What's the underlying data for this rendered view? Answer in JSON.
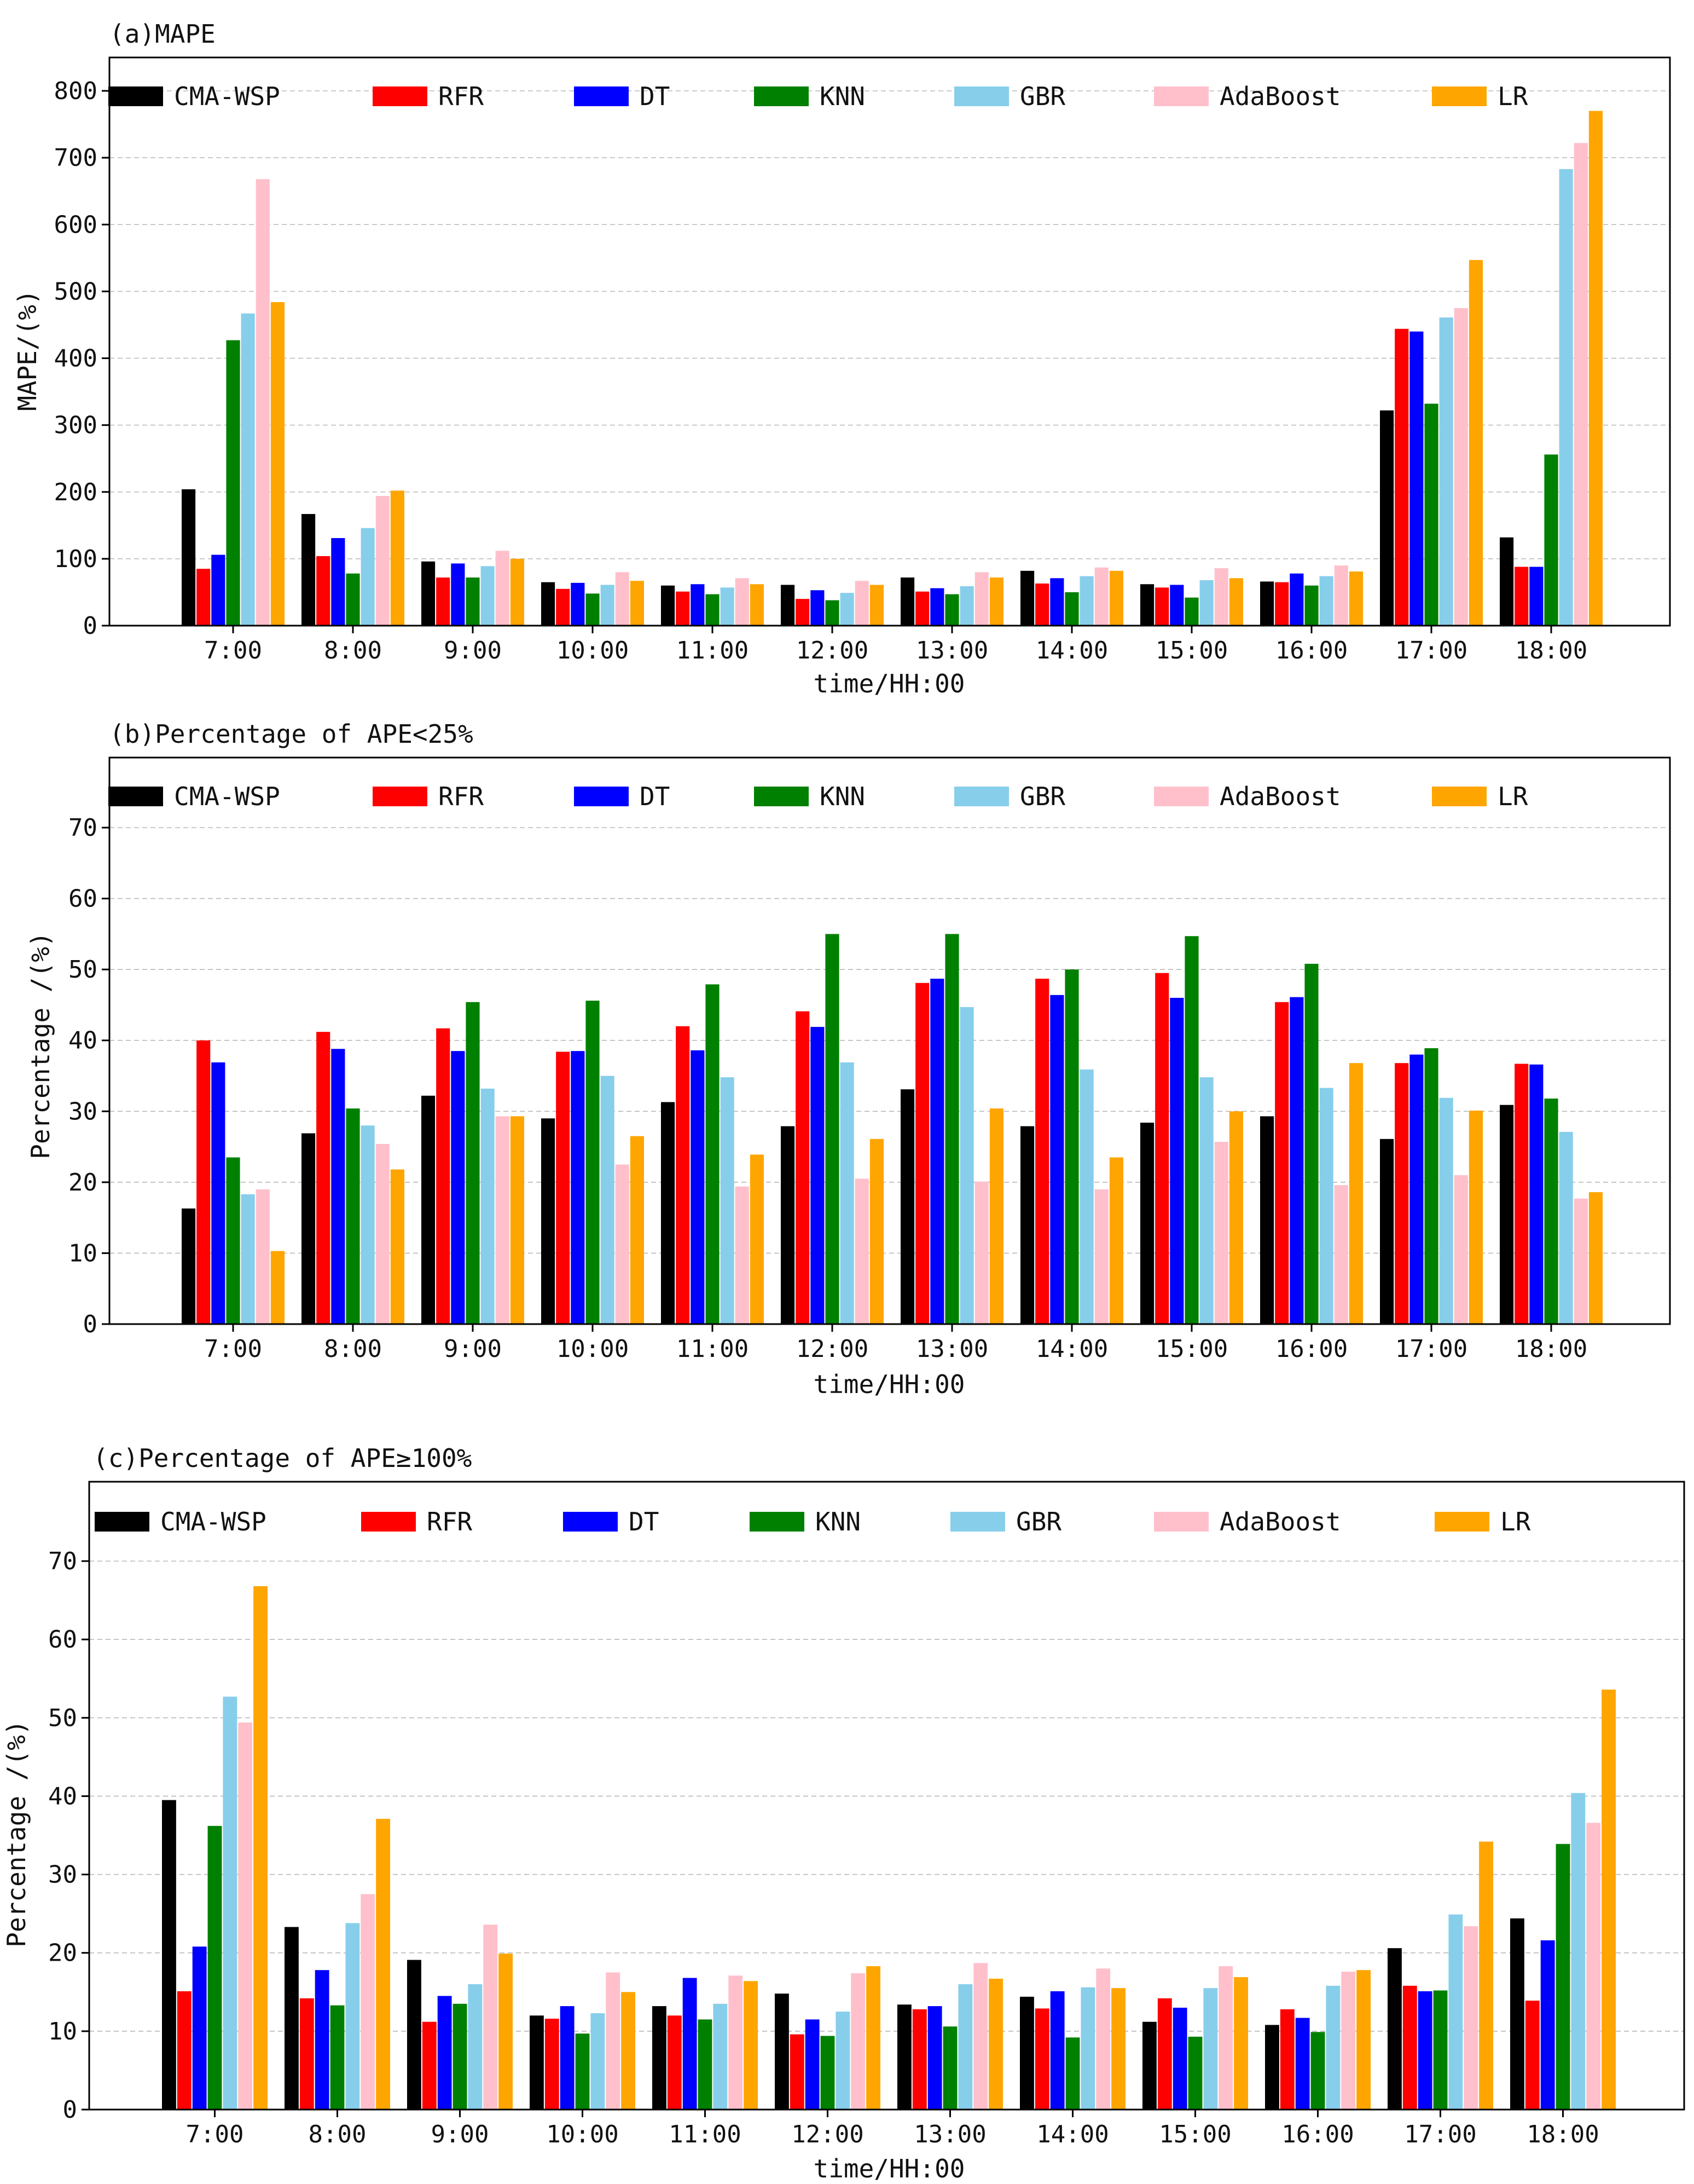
{
  "chart_data": [
    {
      "type": "bar",
      "title": "(a)MAPE",
      "xlabel": "time/HH:00",
      "ylabel": "MAPE/(%)",
      "ylim": [
        0,
        840
      ],
      "yticks": [
        0,
        100,
        200,
        300,
        400,
        500,
        600,
        700,
        800
      ],
      "grid": true,
      "legend": "top",
      "categories": [
        "7:00",
        "8:00",
        "9:00",
        "10:00",
        "11:00",
        "12:00",
        "13:00",
        "14:00",
        "15:00",
        "16:00",
        "17:00",
        "18:00"
      ],
      "series": [
        {
          "name": "CMA-WSP",
          "color": "#000000",
          "values": [
            204,
            167,
            96,
            65,
            60,
            61,
            72,
            82,
            62,
            66,
            322,
            132
          ]
        },
        {
          "name": "RFR",
          "color": "#ff0000",
          "values": [
            85,
            104,
            72,
            55,
            51,
            40,
            51,
            63,
            57,
            65,
            444,
            88
          ]
        },
        {
          "name": "DT",
          "color": "#0000ff",
          "values": [
            106,
            131,
            93,
            64,
            62,
            53,
            56,
            71,
            61,
            78,
            440,
            88
          ]
        },
        {
          "name": "KNN",
          "color": "#008000",
          "values": [
            427,
            78,
            72,
            48,
            47,
            38,
            47,
            50,
            42,
            60,
            332,
            256
          ]
        },
        {
          "name": "GBR",
          "color": "#87ceeb",
          "values": [
            467,
            146,
            89,
            61,
            57,
            49,
            59,
            74,
            68,
            74,
            461,
            683
          ]
        },
        {
          "name": "AdaBoost",
          "color": "#ffc0cb",
          "values": [
            668,
            194,
            112,
            80,
            71,
            67,
            80,
            87,
            86,
            90,
            475,
            722
          ]
        },
        {
          "name": "LR",
          "color": "#ffa500",
          "values": [
            484,
            202,
            100,
            67,
            62,
            61,
            72,
            82,
            71,
            81,
            547,
            770
          ]
        }
      ]
    },
    {
      "type": "bar",
      "title": "(b)Percentage of APE<25%",
      "xlabel": "time/HH:00",
      "ylabel": "Percentage /(%)",
      "ylim": [
        0,
        80
      ],
      "yticks": [
        0,
        10,
        20,
        30,
        40,
        50,
        60,
        70
      ],
      "grid": true,
      "legend": "top",
      "categories": [
        "7:00",
        "8:00",
        "9:00",
        "10:00",
        "11:00",
        "12:00",
        "13:00",
        "14:00",
        "15:00",
        "16:00",
        "17:00",
        "18:00"
      ],
      "series": [
        {
          "name": "CMA-WSP",
          "color": "#000000",
          "values": [
            16.3,
            26.9,
            32.2,
            29.0,
            31.3,
            27.9,
            33.1,
            27.9,
            28.4,
            29.3,
            26.1,
            30.9
          ]
        },
        {
          "name": "RFR",
          "color": "#ff0000",
          "values": [
            40.0,
            41.2,
            41.7,
            38.4,
            42.0,
            44.1,
            48.1,
            48.7,
            49.5,
            45.4,
            36.8,
            36.7
          ]
        },
        {
          "name": "DT",
          "color": "#0000ff",
          "values": [
            36.9,
            38.8,
            38.5,
            38.5,
            38.6,
            41.9,
            48.7,
            46.4,
            46.0,
            46.1,
            38.0,
            36.6
          ]
        },
        {
          "name": "KNN",
          "color": "#008000",
          "values": [
            23.5,
            30.4,
            45.4,
            45.6,
            47.9,
            55.0,
            55.0,
            50.0,
            54.7,
            50.8,
            38.9,
            31.8
          ]
        },
        {
          "name": "GBR",
          "color": "#87ceeb",
          "values": [
            18.3,
            28.0,
            33.2,
            35.0,
            34.8,
            36.9,
            44.7,
            35.9,
            34.8,
            33.3,
            31.9,
            27.1
          ]
        },
        {
          "name": "AdaBoost",
          "color": "#ffc0cb",
          "values": [
            19.0,
            25.4,
            29.3,
            22.5,
            19.4,
            20.5,
            20.1,
            19.0,
            25.7,
            19.6,
            21.0,
            17.7
          ]
        },
        {
          "name": "LR",
          "color": "#ffa500",
          "values": [
            10.3,
            21.8,
            29.3,
            26.5,
            23.9,
            26.1,
            30.4,
            23.5,
            30.0,
            36.8,
            30.1,
            18.6
          ]
        }
      ]
    },
    {
      "type": "bar",
      "title": "(c)Percentage of APE≥100%",
      "xlabel": "time/HH:00",
      "ylabel": "Percentage /(%)",
      "ylim": [
        0,
        80
      ],
      "yticks": [
        0,
        10,
        20,
        30,
        40,
        50,
        60,
        70
      ],
      "grid": true,
      "legend": "top",
      "categories": [
        "7:00",
        "8:00",
        "9:00",
        "10:00",
        "11:00",
        "12:00",
        "13:00",
        "14:00",
        "15:00",
        "16:00",
        "17:00",
        "18:00"
      ],
      "series": [
        {
          "name": "CMA-WSP",
          "color": "#000000",
          "values": [
            39.5,
            23.3,
            19.1,
            12.0,
            13.2,
            14.8,
            13.4,
            14.4,
            11.2,
            10.8,
            20.6,
            24.4
          ]
        },
        {
          "name": "RFR",
          "color": "#ff0000",
          "values": [
            15.1,
            14.2,
            11.2,
            11.6,
            12.0,
            9.6,
            12.8,
            12.9,
            14.2,
            12.8,
            15.8,
            13.9
          ]
        },
        {
          "name": "DT",
          "color": "#0000ff",
          "values": [
            20.8,
            17.8,
            14.5,
            13.2,
            16.8,
            11.5,
            13.2,
            15.1,
            13.0,
            11.7,
            15.1,
            21.6
          ]
        },
        {
          "name": "KNN",
          "color": "#008000",
          "values": [
            36.2,
            13.3,
            13.5,
            9.7,
            11.5,
            9.4,
            10.6,
            9.2,
            9.3,
            9.9,
            15.2,
            33.9
          ]
        },
        {
          "name": "GBR",
          "color": "#87ceeb",
          "values": [
            52.7,
            23.8,
            16.0,
            12.3,
            13.5,
            12.5,
            16.0,
            15.6,
            15.5,
            15.8,
            24.9,
            40.4
          ]
        },
        {
          "name": "AdaBoost",
          "color": "#ffc0cb",
          "values": [
            49.4,
            27.5,
            23.6,
            17.5,
            17.1,
            17.4,
            18.7,
            18.0,
            18.3,
            17.6,
            23.4,
            36.6
          ]
        },
        {
          "name": "LR",
          "color": "#ffa500",
          "values": [
            66.8,
            37.1,
            19.9,
            15.0,
            16.4,
            18.3,
            16.7,
            15.5,
            16.9,
            17.8,
            34.2,
            53.6
          ]
        }
      ]
    }
  ]
}
